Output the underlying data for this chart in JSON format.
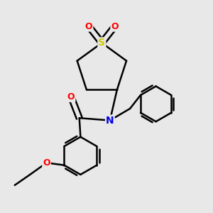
{
  "background_color": "#e8e8e8",
  "bond_color": "#000000",
  "bond_width": 1.8,
  "atom_colors": {
    "S": "#cccc00",
    "O": "#ff0000",
    "N": "#0000ee",
    "C": "#000000"
  },
  "font_size": 9,
  "figsize": [
    3.0,
    3.0
  ],
  "dpi": 100
}
